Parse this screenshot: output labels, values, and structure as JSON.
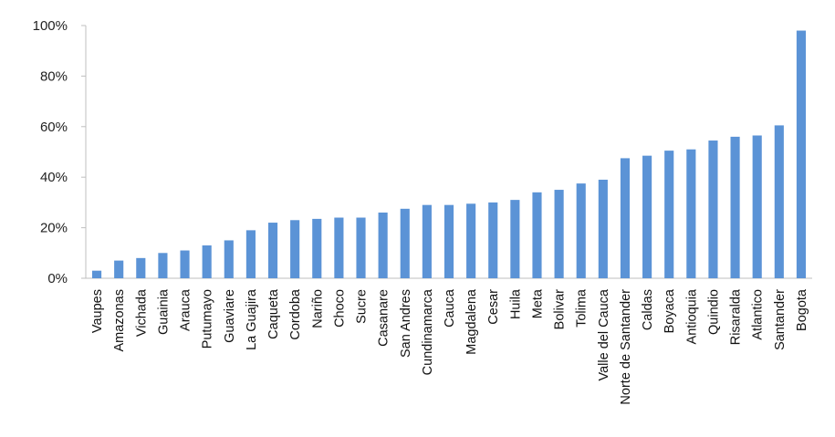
{
  "chart_data": {
    "type": "bar",
    "title": "",
    "xlabel": "",
    "ylabel": "",
    "ylim": [
      0,
      100
    ],
    "yticks": [
      "0%",
      "20%",
      "40%",
      "60%",
      "80%",
      "100%"
    ],
    "grid": false,
    "legend": "none",
    "bar_color": "#5b93d6",
    "categories": [
      "Vaupes",
      "Amazonas",
      "Vichada",
      "Guainia",
      "Arauca",
      "Putumayo",
      "Guaviare",
      "La Guajira",
      "Caqueta",
      "Cordoba",
      "Nariño",
      "Choco",
      "Sucre",
      "Casanare",
      "San Andres",
      "Cundinamarca",
      "Cauca",
      "Magdalena",
      "Cesar",
      "Huila",
      "Meta",
      "Bolivar",
      "Tolima",
      "Valle del Cauca",
      "Norte de Santander",
      "Caldas",
      "Boyaca",
      "Antioquia",
      "Quindio",
      "Risaralda",
      "Atlantico",
      "Santander",
      "Bogota"
    ],
    "values": [
      3,
      7,
      8,
      10,
      11,
      13,
      15,
      19,
      22,
      23,
      23.5,
      24,
      24,
      26,
      27.5,
      29,
      29,
      29.5,
      30,
      31,
      34,
      35,
      37.5,
      39,
      47.5,
      48.5,
      50.5,
      51,
      54.5,
      56,
      56.5,
      60.5,
      98
    ]
  }
}
